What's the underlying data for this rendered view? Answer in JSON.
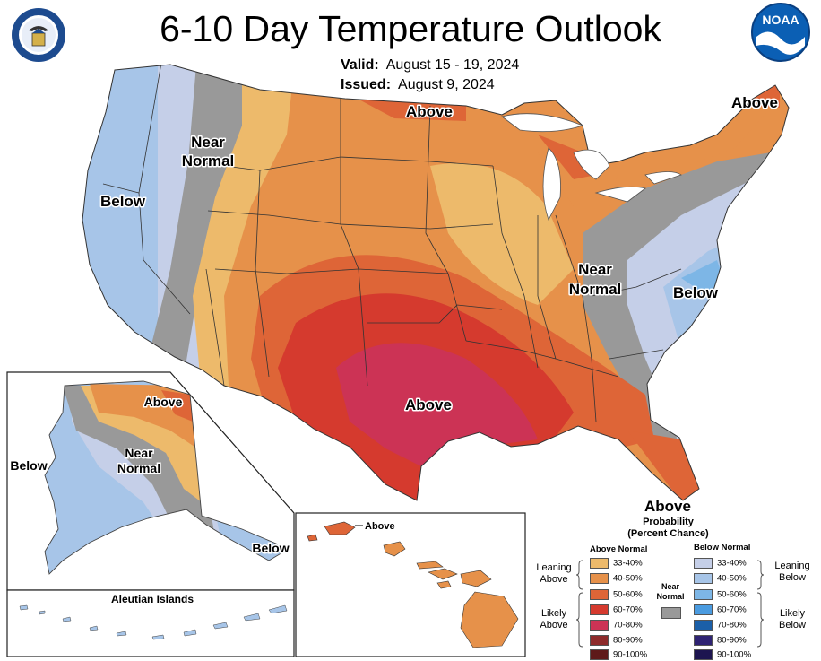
{
  "header": {
    "title": "6-10 Day Temperature Outlook",
    "valid_label": "Valid:",
    "valid_value": "August 15 - 19, 2024",
    "issued_label": "Issued:",
    "issued_value": "August 9, 2024"
  },
  "logos": {
    "left": "department-of-commerce-seal",
    "right": "noaa-logo",
    "right_text": "NOAA"
  },
  "map_labels": {
    "conus_near_normal_west_1": "Near",
    "conus_near_normal_west_2": "Normal",
    "conus_below_west": "Below",
    "conus_above_north": "Above",
    "conus_above_northeast": "Above",
    "conus_near_normal_east_1": "Near",
    "conus_near_normal_east_2": "Normal",
    "conus_below_east": "Below",
    "conus_above_south": "Above",
    "conus_above_florida": "Above",
    "alaska_above": "Above",
    "alaska_near_normal_1": "Near",
    "alaska_near_normal_2": "Normal",
    "alaska_below_west": "Below",
    "alaska_below_panhandle": "Below",
    "aleutian_title": "Aleutian Islands",
    "hawaii_above": "Above"
  },
  "legend": {
    "title_1": "Probability",
    "title_2": "(Percent Chance)",
    "above_header": "Above Normal",
    "below_header": "Below Normal",
    "near_normal_1": "Near",
    "near_normal_2": "Normal",
    "leaning_above_1": "Leaning",
    "leaning_above_2": "Above",
    "likely_above_1": "Likely",
    "likely_above_2": "Above",
    "leaning_below_1": "Leaning",
    "leaning_below_2": "Below",
    "likely_below_1": "Likely",
    "likely_below_2": "Below",
    "above_bins": [
      {
        "label": "33-40%",
        "color": "#EDBA6B"
      },
      {
        "label": "40-50%",
        "color": "#E6914A"
      },
      {
        "label": "50-60%",
        "color": "#DE6537"
      },
      {
        "label": "60-70%",
        "color": "#D53A2E"
      },
      {
        "label": "70-80%",
        "color": "#CC3355"
      },
      {
        "label": "80-90%",
        "color": "#8E2B2B"
      },
      {
        "label": "90-100%",
        "color": "#5E1A1A"
      }
    ],
    "below_bins": [
      {
        "label": "33-40%",
        "color": "#C5CFE8"
      },
      {
        "label": "40-50%",
        "color": "#A7C5E8"
      },
      {
        "label": "50-60%",
        "color": "#7DB6E6"
      },
      {
        "label": "60-70%",
        "color": "#4A9BE0"
      },
      {
        "label": "70-80%",
        "color": "#1B5FA8"
      },
      {
        "label": "80-90%",
        "color": "#2F2373"
      },
      {
        "label": "90-100%",
        "color": "#1D1550"
      }
    ],
    "near_color": "#999999"
  }
}
